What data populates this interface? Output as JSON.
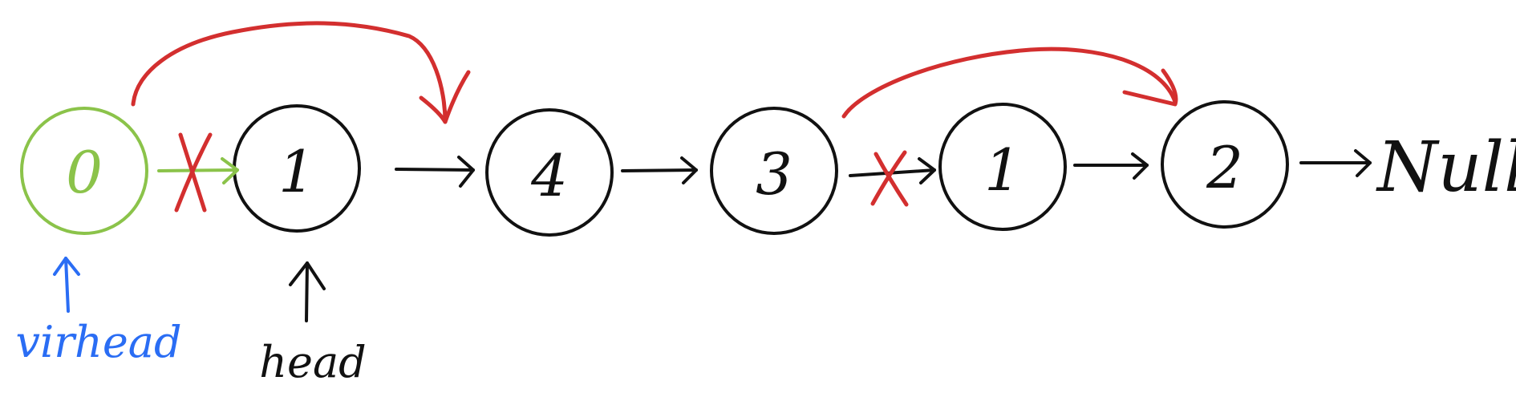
{
  "colors": {
    "ink": "#111111",
    "dummy_node": "#8bc34a",
    "pointer": "#2a6df4",
    "edit": "#d32f2f"
  },
  "nodes": [
    {
      "id": "dummy",
      "label": "0"
    },
    {
      "id": "n1",
      "label": "1"
    },
    {
      "id": "n2",
      "label": "4"
    },
    {
      "id": "n3",
      "label": "3"
    },
    {
      "id": "n4",
      "label": "1"
    },
    {
      "id": "n5",
      "label": "2"
    }
  ],
  "terminal": {
    "label": "Null"
  },
  "pointers": {
    "virhead": {
      "label": "virhead"
    },
    "head": {
      "label": "head"
    }
  }
}
